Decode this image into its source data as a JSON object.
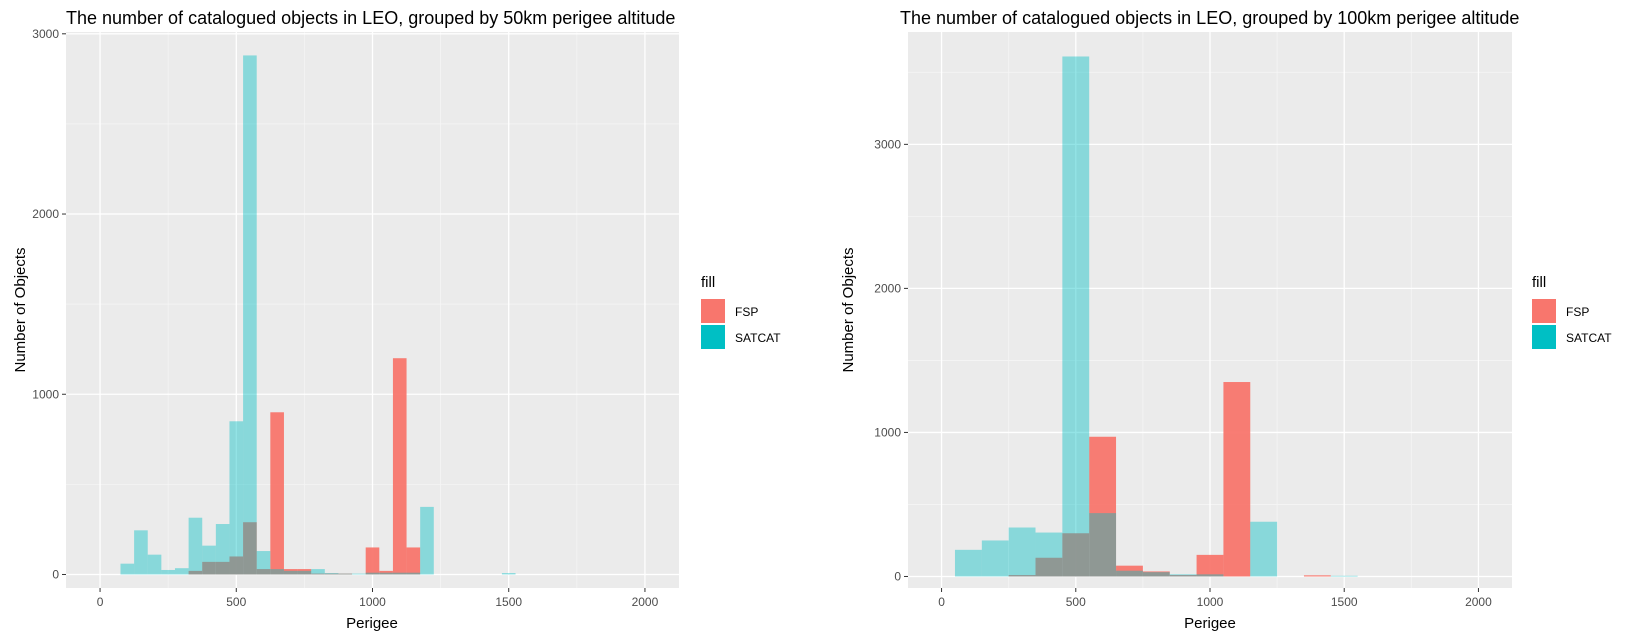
{
  "chart_data": [
    {
      "type": "bar",
      "title": "The number of catalogued objects in LEO, grouped by 50km perigee altitude",
      "xlabel": "Perigee",
      "ylabel": "Number of Objects",
      "xlim": [
        -125,
        2125
      ],
      "ylim": [
        -75,
        3010
      ],
      "x_ticks": [
        0,
        500,
        1000,
        1500,
        2000
      ],
      "y_ticks": [
        0,
        1000,
        2000,
        3000
      ],
      "bin_width": 50,
      "legend": {
        "title": "fill",
        "position": "right"
      },
      "series": [
        {
          "name": "SATCAT",
          "color": "#00BFC4",
          "opacity": 0.42,
          "x": [
            100,
            150,
            200,
            250,
            300,
            350,
            400,
            450,
            500,
            550,
            600,
            650,
            700,
            750,
            800,
            850,
            900,
            950,
            1000,
            1050,
            1100,
            1150,
            1200,
            1250,
            1300,
            1350,
            1400,
            1450,
            1500,
            1550
          ],
          "values": [
            60,
            245,
            110,
            25,
            35,
            315,
            160,
            280,
            850,
            2880,
            130,
            30,
            20,
            20,
            30,
            8,
            5,
            5,
            10,
            10,
            10,
            10,
            375,
            0,
            0,
            0,
            0,
            0,
            8,
            0
          ]
        },
        {
          "name": "FSP",
          "color": "#F8766D",
          "opacity": 0.95,
          "x": [
            350,
            400,
            450,
            500,
            550,
            600,
            650,
            700,
            750,
            800,
            850,
            900,
            1000,
            1050,
            1100,
            1150
          ],
          "values": [
            20,
            70,
            70,
            100,
            290,
            30,
            900,
            30,
            30,
            5,
            5,
            5,
            150,
            20,
            1200,
            150
          ]
        }
      ]
    },
    {
      "type": "bar",
      "title": "The number of catalogued objects in LEO, grouped by 100km perigee altitude",
      "xlabel": "Perigee",
      "ylabel": "Number of Objects",
      "xlim": [
        -125,
        2125
      ],
      "ylim": [
        -80,
        3780
      ],
      "x_ticks": [
        0,
        500,
        1000,
        1500,
        2000
      ],
      "y_ticks": [
        0,
        1000,
        2000,
        3000
      ],
      "bin_width": 100,
      "legend": {
        "title": "fill",
        "position": "right"
      },
      "series": [
        {
          "name": "SATCAT",
          "color": "#00BFC4",
          "opacity": 0.42,
          "x": [
            100,
            200,
            300,
            400,
            500,
            600,
            700,
            800,
            900,
            1000,
            1100,
            1200,
            1300,
            1400,
            1500
          ],
          "values": [
            185,
            250,
            340,
            305,
            3610,
            440,
            40,
            30,
            15,
            15,
            0,
            380,
            0,
            0,
            5
          ]
        },
        {
          "name": "FSP",
          "color": "#F8766D",
          "opacity": 0.95,
          "x": [
            300,
            400,
            500,
            600,
            700,
            800,
            900,
            1000,
            1100,
            1400
          ],
          "values": [
            10,
            130,
            300,
            970,
            75,
            35,
            10,
            150,
            1350,
            8
          ]
        }
      ]
    }
  ]
}
